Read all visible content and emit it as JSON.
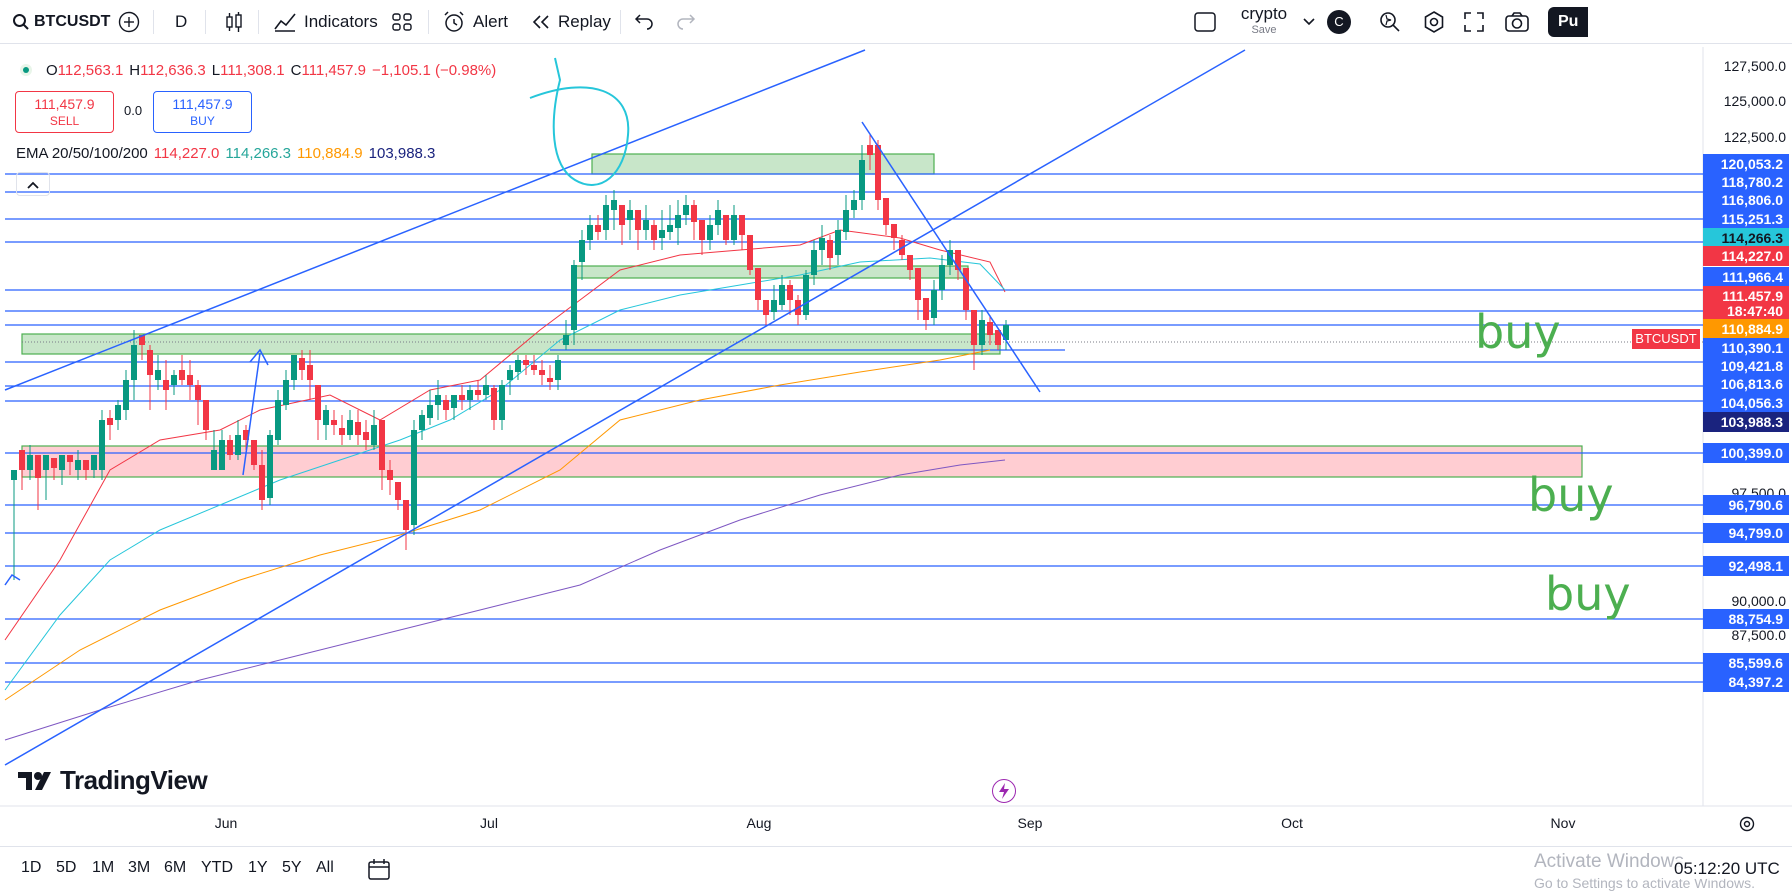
{
  "toolbar": {
    "symbol": "BTCUSDT",
    "interval": "D",
    "indicators": "Indicators",
    "alert": "Alert",
    "replay": "Replay",
    "layout_name": "crypto",
    "layout_sub": "Save",
    "avatar": "C",
    "publish": "Pu"
  },
  "legend": {
    "open_label": "O",
    "open": "112,563.1",
    "high_label": "H",
    "high": "112,636.3",
    "low_label": "L",
    "low": "111,308.1",
    "close_label": "C",
    "close": "111,457.9",
    "change": "−1,105.1 (−0.98%)",
    "sell_price": "111,457.9",
    "sell_label": "SELL",
    "spread": "0.0",
    "buy_price": "111,457.9",
    "buy_label": "BUY",
    "ema_label": "EMA 20/50/100/200",
    "ema20": "114,227.0",
    "ema50": "114,266.3",
    "ema100": "110,884.9",
    "ema200": "103,988.3"
  },
  "price_axis": {
    "ticks": [
      "127,500.0",
      "125,000.0",
      "122,500.0",
      "97,500.0",
      "90,000.0",
      "87,500.0"
    ],
    "tags": [
      {
        "v": "120,053.2",
        "bg": "#2962ff"
      },
      {
        "v": "118,780.2",
        "bg": "#2962ff"
      },
      {
        "v": "116,806.0",
        "bg": "#2962ff"
      },
      {
        "v": "115,251.3",
        "bg": "#2962ff"
      },
      {
        "v": "114,266.3",
        "bg": "#26c6da",
        "fg": "#131722"
      },
      {
        "v": "114,227.0",
        "bg": "#f23645"
      },
      {
        "v": "111,966.4",
        "bg": "#2962ff"
      },
      {
        "v": "111,457.9",
        "bg": "#f23645"
      },
      {
        "v": "18:47:40",
        "bg": "#f23645"
      },
      {
        "v": "110,884.9",
        "bg": "#ff9800"
      },
      {
        "v": "110,390.1",
        "bg": "#2962ff"
      },
      {
        "v": "109,421.8",
        "bg": "#2962ff"
      },
      {
        "v": "106,813.6",
        "bg": "#2962ff"
      },
      {
        "v": "104,056.3",
        "bg": "#2962ff"
      },
      {
        "v": "103,988.3",
        "bg": "#1a237e"
      },
      {
        "v": "100,399.0",
        "bg": "#2962ff"
      },
      {
        "v": "96,790.6",
        "bg": "#2962ff"
      },
      {
        "v": "94,799.0",
        "bg": "#2962ff"
      },
      {
        "v": "92,498.1",
        "bg": "#2962ff"
      },
      {
        "v": "88,754.9",
        "bg": "#2962ff"
      },
      {
        "v": "85,599.6",
        "bg": "#2962ff"
      },
      {
        "v": "84,397.2",
        "bg": "#2962ff"
      }
    ],
    "symbol_tag": "BTCUSDT"
  },
  "time_axis": [
    "Jun",
    "Jul",
    "Aug",
    "Sep",
    "Oct",
    "Nov"
  ],
  "annotations": {
    "buy1": "buy",
    "buy2": "buy",
    "buy3": "buy"
  },
  "watermark": "TradingView",
  "bottom": {
    "ranges": [
      "1D",
      "5D",
      "1M",
      "3M",
      "6M",
      "YTD",
      "1Y",
      "5Y",
      "All"
    ],
    "clock": "05:12:20 UTC",
    "activate_title": "Activate Windows",
    "activate_sub": "Go to Settings to activate Windows."
  },
  "colors": {
    "up": "#089981",
    "down": "#f23645",
    "line": "#2962ff",
    "zone_green": "#c8e6c9",
    "zone_red": "#ffcdd2"
  }
}
